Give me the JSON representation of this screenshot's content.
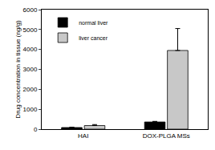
{
  "chart_data": {
    "type": "bar",
    "y_label": "Drug concentration in tissue (ng/g)",
    "categories": [
      "HAI",
      "DOX-PLGA MSs"
    ],
    "series": [
      {
        "name": "normal liver",
        "color": "#000000",
        "values": [
          80,
          360
        ],
        "errors": [
          20,
          30
        ]
      },
      {
        "name": "liver cancer",
        "color": "#c8c8c8",
        "values": [
          180,
          3950
        ],
        "errors": [
          50,
          1100
        ]
      }
    ],
    "ylim": [
      0,
      6000
    ],
    "yticks": [
      0,
      1000,
      2000,
      3000,
      4000,
      5000,
      6000
    ],
    "grid": false,
    "legend": "upper left"
  }
}
